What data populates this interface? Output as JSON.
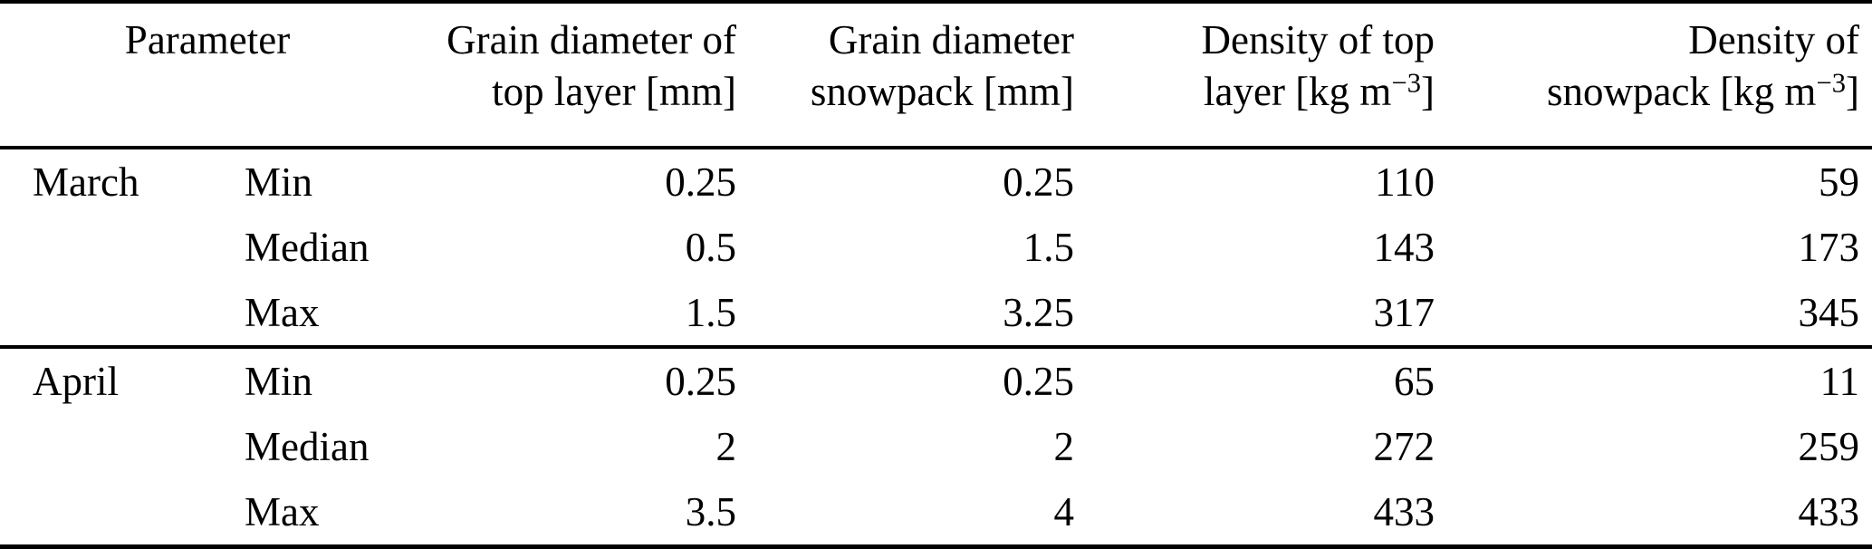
{
  "table": {
    "header": {
      "parameter_label": "Parameter",
      "grain_top": {
        "line1": "Grain diameter of",
        "line2": "top layer [mm]"
      },
      "grain_snowpack": {
        "line1": "Grain diameter",
        "line2": "snowpack [mm]"
      },
      "density_top": {
        "line1": "Density of top",
        "line2_prefix": "layer [kg m",
        "line2_sup": "−3",
        "line2_suffix": "]"
      },
      "density_snowpack": {
        "line1": "Density of",
        "line2_prefix": "snowpack [kg m",
        "line2_sup": "−3",
        "line2_suffix": "]"
      }
    },
    "groups": [
      {
        "month": "March",
        "rows": [
          {
            "stat": "Min",
            "grain_top": "0.25",
            "grain_snowpack": "0.25",
            "density_top": "110",
            "density_snowpack": "59"
          },
          {
            "stat": "Median",
            "grain_top": "0.5",
            "grain_snowpack": "1.5",
            "density_top": "143",
            "density_snowpack": "173"
          },
          {
            "stat": "Max",
            "grain_top": "1.5",
            "grain_snowpack": "3.25",
            "density_top": "317",
            "density_snowpack": "345"
          }
        ]
      },
      {
        "month": "April",
        "rows": [
          {
            "stat": "Min",
            "grain_top": "0.25",
            "grain_snowpack": "0.25",
            "density_top": "65",
            "density_snowpack": "11"
          },
          {
            "stat": "Median",
            "grain_top": "2",
            "grain_snowpack": "2",
            "density_top": "272",
            "density_snowpack": "259"
          },
          {
            "stat": "Max",
            "grain_top": "3.5",
            "grain_snowpack": "4",
            "density_top": "433",
            "density_snowpack": "433"
          }
        ]
      }
    ]
  },
  "colors": {
    "text": "#000000",
    "background": "#ffffff",
    "rule": "#000000"
  }
}
